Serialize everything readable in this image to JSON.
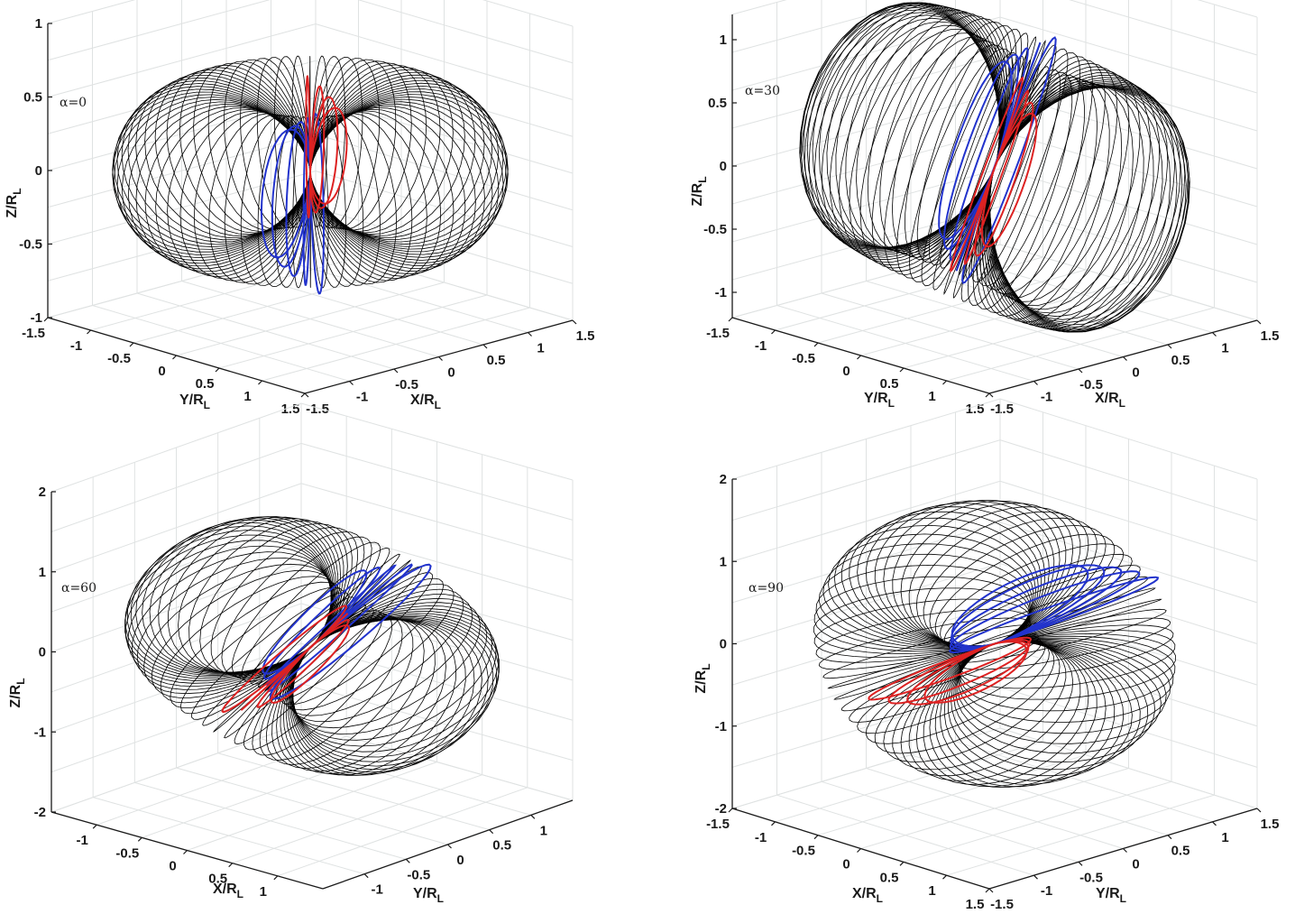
{
  "chart_data": [
    {
      "type": "line",
      "annotation": "α=0",
      "alpha_deg": 0,
      "xlabel": "X/R",
      "xlabel_sub": "L",
      "ylabel": "Y/R",
      "ylabel_sub": "L",
      "zlabel": "Z/R",
      "zlabel_sub": "L",
      "xlim": [
        -1.5,
        1.5
      ],
      "ylim": [
        -1.5,
        1.5
      ],
      "zlim": [
        -1,
        1
      ],
      "xticks": [
        "-1.5",
        "-1",
        "-0.5",
        "0",
        "0.5",
        "1",
        "1.5"
      ],
      "yticks": [
        "-1.5",
        "-1",
        "-0.5",
        "0",
        "0.5",
        "1",
        "1.5"
      ],
      "zticks": [
        "-1",
        "-0.5",
        "0",
        "0.5",
        "1"
      ],
      "grid": true,
      "series": [
        {
          "color": "#000000",
          "count": 70
        },
        {
          "color": "#2233cc",
          "count": 5
        },
        {
          "color": "#dd2222",
          "count": 4
        }
      ]
    },
    {
      "type": "line",
      "annotation": "α=30",
      "alpha_deg": 30,
      "xlabel": "X/R",
      "xlabel_sub": "L",
      "ylabel": "Y/R",
      "ylabel_sub": "L",
      "zlabel": "Z/R",
      "zlabel_sub": "L",
      "xlim": [
        -1.5,
        1.5
      ],
      "ylim": [
        -1.5,
        1.5
      ],
      "zlim": [
        -1.2,
        1.2
      ],
      "xticks": [
        "-1.5",
        "-1",
        "-0.5",
        "0",
        "0.5",
        "1",
        "1.5"
      ],
      "yticks": [
        "-1.5",
        "-1",
        "-0.5",
        "0",
        "0.5",
        "1",
        "1.5"
      ],
      "zticks": [
        "-1",
        "-0.5",
        "0",
        "0.5",
        "1"
      ],
      "grid": true,
      "series": [
        {
          "color": "#000000",
          "count": 70
        },
        {
          "color": "#2233cc",
          "count": 5
        },
        {
          "color": "#dd2222",
          "count": 4
        }
      ]
    },
    {
      "type": "line",
      "annotation": "α=60",
      "alpha_deg": 60,
      "xlabel": "X/R",
      "xlabel_sub": "L",
      "ylabel": "Y/R",
      "ylabel_sub": "L",
      "zlabel": "Z/R",
      "zlabel_sub": "L",
      "xlim": [
        -1.5,
        1.5
      ],
      "ylim": [
        -1.5,
        1.5
      ],
      "zlim": [
        -2,
        2
      ],
      "xticks": [
        "-1",
        "-0.5",
        "0",
        "0.5",
        "1"
      ],
      "yticks": [
        "-1",
        "-0.5",
        "0",
        "0.5",
        "1"
      ],
      "zticks": [
        "-2",
        "-1",
        "0",
        "1",
        "2"
      ],
      "grid": true,
      "series": [
        {
          "color": "#000000",
          "count": 60
        },
        {
          "color": "#2233cc",
          "count": 5
        },
        {
          "color": "#dd2222",
          "count": 4
        }
      ]
    },
    {
      "type": "line",
      "annotation": "α=90",
      "alpha_deg": 90,
      "xlabel": "X/R",
      "xlabel_sub": "L",
      "ylabel": "Y/R",
      "ylabel_sub": "L",
      "zlabel": "Z/R",
      "zlabel_sub": "L",
      "xlim": [
        -1.5,
        1.5
      ],
      "ylim": [
        -1.5,
        1.5
      ],
      "zlim": [
        -2,
        2
      ],
      "xticks": [
        "-1.5",
        "-1",
        "-0.5",
        "0",
        "0.5",
        "1",
        "1.5"
      ],
      "yticks": [
        "-1.5",
        "-1",
        "-0.5",
        "0",
        "0.5",
        "1",
        "1.5"
      ],
      "zticks": [
        "-2",
        "-1",
        "0",
        "1",
        "2"
      ],
      "grid": true,
      "series": [
        {
          "color": "#000000",
          "count": 60
        },
        {
          "color": "#2233cc",
          "count": 5
        },
        {
          "color": "#dd2222",
          "count": 4
        }
      ]
    }
  ]
}
